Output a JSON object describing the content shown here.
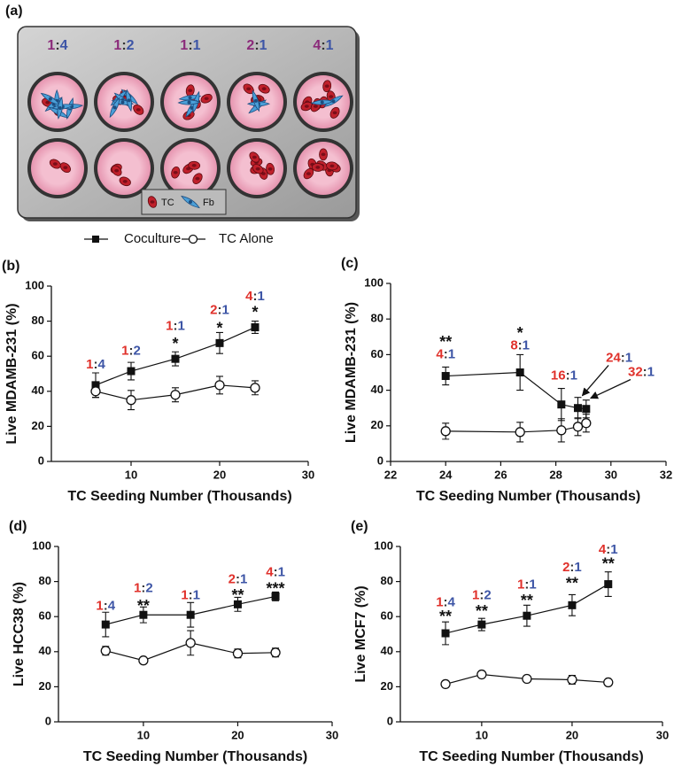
{
  "diagram": {
    "label": "(a)",
    "ratio_separator": ":",
    "tc_color": "#8b2a7a",
    "fb_color": "#3d55a6",
    "ratios": [
      {
        "tc": "1",
        "fb": "4"
      },
      {
        "tc": "1",
        "fb": "2"
      },
      {
        "tc": "1",
        "fb": "1"
      },
      {
        "tc": "2",
        "fb": "1"
      },
      {
        "tc": "4",
        "fb": "1"
      }
    ],
    "legend": [
      "TC",
      "Fb"
    ]
  },
  "ratio_separator": ":",
  "tc_color": "#e0312b",
  "fb_color": "#3d55a6",
  "chart_data": [
    {
      "type": "line",
      "panel_label": "(b)",
      "x_label": "TC Seeding Number (Thousands)",
      "y_label": "Live MDAMB-231 (%)",
      "xlim": [
        1,
        30
      ],
      "xticks": [
        10,
        20,
        30
      ],
      "ylim": [
        0,
        100
      ],
      "yticks": [
        0,
        20,
        40,
        60,
        80,
        100
      ],
      "series": [
        {
          "name": "Coculture",
          "color": "#111111",
          "marker": "square",
          "x": [
            6,
            10,
            15,
            20,
            24
          ],
          "values": [
            43.5,
            51.5,
            58.5,
            67.5,
            76.5
          ],
          "errors": [
            7,
            5,
            4,
            6,
            3.5
          ]
        },
        {
          "name": "TC Alone",
          "color": "#111111",
          "marker": "circle",
          "x": [
            6,
            10,
            15,
            20,
            24
          ],
          "values": [
            40,
            35,
            38,
            43.5,
            42
          ],
          "errors": [
            3.5,
            5.5,
            4,
            5,
            4
          ]
        }
      ],
      "ratios": [
        {
          "x": 6,
          "y": 55,
          "tc": "1",
          "fb": "4"
        },
        {
          "x": 10,
          "y": 63,
          "tc": "1",
          "fb": "2"
        },
        {
          "x": 15,
          "y": 77,
          "tc": "1",
          "fb": "1"
        },
        {
          "x": 20,
          "y": 86,
          "tc": "2",
          "fb": "1"
        },
        {
          "x": 24,
          "y": 94,
          "tc": "4",
          "fb": "1"
        }
      ],
      "annotations": [
        {
          "x": 15,
          "y": 68,
          "text": "*"
        },
        {
          "x": 20,
          "y": 77,
          "text": "*"
        },
        {
          "x": 24,
          "y": 86,
          "text": "*"
        }
      ]
    },
    {
      "type": "line",
      "panel_label": "(c)",
      "x_label": "TC Seeding Number (Thousands)",
      "y_label": "Live MDAMB-231 (%)",
      "xlim": [
        22,
        32
      ],
      "xticks": [
        22,
        24,
        26,
        28,
        30,
        32
      ],
      "ylim": [
        0,
        100
      ],
      "yticks": [
        0,
        20,
        40,
        60,
        80,
        100
      ],
      "series": [
        {
          "name": "Coculture",
          "color": "#111111",
          "marker": "square",
          "x": [
            24,
            26.7,
            28.2,
            28.8,
            29.1
          ],
          "values": [
            48,
            50,
            32,
            30,
            29.5
          ],
          "errors": [
            5,
            10,
            9,
            6,
            5
          ]
        },
        {
          "name": "TC Alone",
          "color": "#111111",
          "marker": "circle",
          "x": [
            24,
            26.7,
            28.2,
            28.8,
            29.1
          ],
          "values": [
            17,
            16.5,
            17.5,
            19.5,
            21.5
          ],
          "errors": [
            4.5,
            5.5,
            6.5,
            5,
            5
          ]
        }
      ],
      "ratios": [
        {
          "x": 24,
          "y": 60,
          "tc": "4",
          "fb": "1"
        },
        {
          "x": 26.7,
          "y": 65,
          "tc": "8",
          "fb": "1"
        },
        {
          "x": 28.3,
          "y": 48,
          "tc": "16",
          "fb": "1"
        },
        {
          "x": 30.3,
          "y": 58,
          "tc": "24",
          "fb": "1"
        },
        {
          "x": 31.1,
          "y": 50,
          "tc": "32",
          "fb": "1"
        }
      ],
      "annotations": [
        {
          "x": 24,
          "y": 68,
          "text": "**"
        },
        {
          "x": 26.7,
          "y": 73,
          "text": "*"
        }
      ]
    },
    {
      "type": "line",
      "panel_label": "(d)",
      "x_label": "TC Seeding Number (Thousands)",
      "y_label": "Live HCC38 (%)",
      "xlim": [
        1,
        30
      ],
      "xticks": [
        10,
        20,
        30
      ],
      "ylim": [
        0,
        100
      ],
      "yticks": [
        0,
        20,
        40,
        60,
        80,
        100
      ],
      "series": [
        {
          "name": "Coculture",
          "color": "#111111",
          "marker": "square",
          "x": [
            6,
            10,
            15,
            20,
            24
          ],
          "values": [
            55.5,
            61,
            61,
            67,
            71.5
          ],
          "errors": [
            7,
            4.5,
            7,
            4,
            2.5
          ]
        },
        {
          "name": "TC Alone",
          "color": "#111111",
          "marker": "circle",
          "x": [
            6,
            10,
            15,
            20,
            24
          ],
          "values": [
            40.5,
            35,
            45,
            39,
            39.5
          ],
          "errors": [
            2.5,
            1,
            7,
            2.5,
            2.5
          ]
        }
      ],
      "ratios": [
        {
          "x": 6,
          "y": 66,
          "tc": "1",
          "fb": "4"
        },
        {
          "x": 10,
          "y": 76,
          "tc": "1",
          "fb": "2"
        },
        {
          "x": 15,
          "y": 72,
          "tc": "1",
          "fb": "1"
        },
        {
          "x": 20,
          "y": 81,
          "tc": "2",
          "fb": "1"
        },
        {
          "x": 24,
          "y": 85,
          "tc": "4",
          "fb": "1"
        }
      ],
      "annotations": [
        {
          "x": 10,
          "y": 67,
          "text": "**"
        },
        {
          "x": 20,
          "y": 73,
          "text": "**"
        },
        {
          "x": 24,
          "y": 77,
          "text": "***"
        }
      ]
    },
    {
      "type": "line",
      "panel_label": "(e)",
      "x_label": "TC Seeding Number (Thousands)",
      "y_label": "Live MCF7 (%)",
      "xlim": [
        1,
        30
      ],
      "xticks": [
        10,
        20,
        30
      ],
      "ylim": [
        0,
        100
      ],
      "yticks": [
        0,
        20,
        40,
        60,
        80,
        100
      ],
      "series": [
        {
          "name": "Coculture",
          "color": "#111111",
          "marker": "square",
          "x": [
            6,
            10,
            15,
            20,
            24
          ],
          "values": [
            50.5,
            55.5,
            60.5,
            66.5,
            78.5
          ],
          "errors": [
            6.5,
            3.5,
            6,
            6,
            7
          ]
        },
        {
          "name": "TC Alone",
          "color": "#111111",
          "marker": "circle",
          "x": [
            6,
            10,
            15,
            20,
            24
          ],
          "values": [
            21.5,
            27,
            24.5,
            24,
            22.5
          ],
          "errors": [
            0.5,
            1,
            1,
            2.5,
            1
          ]
        }
      ],
      "ratios": [
        {
          "x": 6,
          "y": 68,
          "tc": "1",
          "fb": "4"
        },
        {
          "x": 10,
          "y": 72,
          "tc": "1",
          "fb": "2"
        },
        {
          "x": 15,
          "y": 78,
          "tc": "1",
          "fb": "1"
        },
        {
          "x": 20,
          "y": 88,
          "tc": "2",
          "fb": "1"
        },
        {
          "x": 24,
          "y": 98,
          "tc": "4",
          "fb": "1"
        }
      ],
      "annotations": [
        {
          "x": 6,
          "y": 61,
          "text": "**"
        },
        {
          "x": 10,
          "y": 64,
          "text": "**"
        },
        {
          "x": 15,
          "y": 70,
          "text": "**"
        },
        {
          "x": 20,
          "y": 80,
          "text": "**"
        },
        {
          "x": 24,
          "y": 91,
          "text": "**"
        }
      ]
    }
  ]
}
